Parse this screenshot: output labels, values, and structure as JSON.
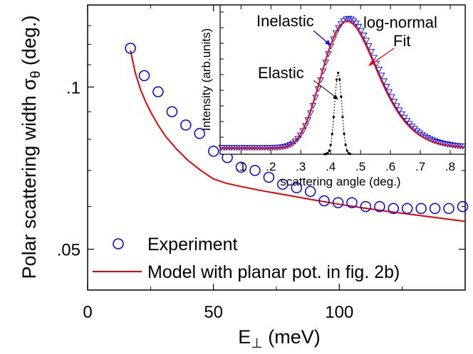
{
  "chart_data": [
    {
      "id": "main",
      "type": "scatter",
      "title": "",
      "xlabel": "E",
      "xlabel_subscript": "⊥",
      "xlabel_unit": " (meV)",
      "ylabel": "Polar scattering width σ",
      "ylabel_subscript": "θ",
      "ylabel_unit": " (deg.)",
      "xlim": [
        0,
        150
      ],
      "ylim_log": [
        0.042,
        0.142
      ],
      "yscale": "log",
      "xticks": [
        0,
        50,
        100
      ],
      "xtick_labels": [
        "0",
        "50",
        "100"
      ],
      "xminor_ticks": [
        25,
        75,
        125
      ],
      "yticks": [
        0.05,
        0.1
      ],
      "ytick_labels": [
        ".05",
        ".1"
      ],
      "yminor_ticks": [
        0.06,
        0.07,
        0.08,
        0.09,
        0.11,
        0.12,
        0.13
      ],
      "legend_position": "bottom-left",
      "series": [
        {
          "name": "Experiment",
          "kind": "markers",
          "marker": "open-circle",
          "color": "#0000ee",
          "x": [
            17,
            22.5,
            28,
            33.5,
            39,
            44.5,
            50,
            55.5,
            61,
            66.5,
            72,
            77.5,
            83,
            88.5,
            94,
            99.5,
            105,
            110.5,
            116,
            121.5,
            127,
            132.5,
            138,
            143.5,
            149
          ],
          "y": [
            0.118,
            0.105,
            0.098,
            0.09,
            0.085,
            0.082,
            0.076,
            0.074,
            0.071,
            0.07,
            0.068,
            0.066,
            0.065,
            0.064,
            0.0615,
            0.061,
            0.061,
            0.06,
            0.06,
            0.0595,
            0.0595,
            0.0595,
            0.0595,
            0.0595,
            0.06
          ]
        },
        {
          "name": "Model with planar pot. in fig. 2b)",
          "kind": "line",
          "color": "#ee0000",
          "x": [
            17,
            19,
            21,
            23,
            25,
            28,
            31,
            35,
            40,
            45,
            50,
            55,
            60,
            70,
            80,
            90,
            100,
            110,
            120,
            130,
            140,
            150
          ],
          "y": [
            0.117,
            0.106,
            0.099,
            0.094,
            0.09,
            0.085,
            0.081,
            0.077,
            0.073,
            0.07,
            0.0675,
            0.0663,
            0.0655,
            0.0641,
            0.0629,
            0.0617,
            0.0606,
            0.0596,
            0.0587,
            0.0579,
            0.0571,
            0.0563
          ]
        }
      ]
    },
    {
      "id": "inset",
      "type": "scatter",
      "title": "",
      "xlabel": "scattering angle (deg.)",
      "ylabel": "Intensity (arb.units)",
      "xlim": [
        0.03,
        0.85
      ],
      "ylim": [
        0,
        1.1
      ],
      "xticks": [
        0.1,
        0.2,
        0.3,
        0.4,
        0.5,
        0.6,
        0.7,
        0.8
      ],
      "xtick_labels": [
        ".1",
        ".2",
        ".3",
        ".4",
        ".5",
        ".6",
        ".7",
        ".8"
      ],
      "annotations": [
        "Inelastic",
        "log-normal",
        "Fit",
        "Elastic"
      ],
      "series": [
        {
          "name": "Inelastic",
          "kind": "markers",
          "marker": "open-triangle-down",
          "color": "#0000ee",
          "distribution": "log-normal",
          "center_deg": 0.46,
          "peak": 1.0,
          "baseline": 0.05
        },
        {
          "name": "log-normal Fit",
          "kind": "line",
          "color": "#ee0000",
          "distribution": "log-normal",
          "center_deg": 0.455,
          "peak": 0.98,
          "baseline": 0.045
        },
        {
          "name": "Elastic",
          "kind": "dotted-line-with-markers",
          "color": "#000000",
          "distribution": "gaussian",
          "center_deg": 0.425,
          "sigma_deg": 0.012,
          "peak": 0.6,
          "baseline": 0.0
        }
      ]
    }
  ]
}
